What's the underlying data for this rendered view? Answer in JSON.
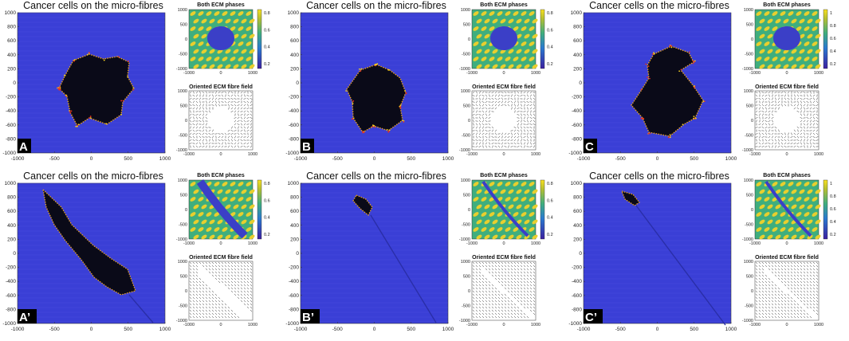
{
  "panels": [
    {
      "letter": "A",
      "big_title": "Cancer cells on the micro-fibres",
      "ecm_title": "Both ECM phases",
      "fibre_title": "Oriented ECM fibre field",
      "colorbar_ticks": [
        "0.8",
        "0.6",
        "0.4",
        "0.2"
      ],
      "pattern": "blob",
      "fibre_mode": "random",
      "mid": "mid"
    },
    {
      "letter": "B",
      "big_title": "Cancer cells on the micro-fibres",
      "ecm_title": "Both ECM phases",
      "fibre_title": "Oriented ECM fibre field",
      "colorbar_ticks": [
        "0.8",
        "0.6",
        "0.4",
        "0.2"
      ],
      "pattern": "blob",
      "fibre_mode": "random",
      "mid": "mid"
    },
    {
      "letter": "C",
      "big_title": "Cancer cells on the micro-fibres",
      "ecm_title": "Both ECM phases",
      "fibre_title": "Oriented ECM fibre field",
      "colorbar_ticks": [
        "1",
        "0.8",
        "0.6",
        "0.4",
        "0.2"
      ],
      "pattern": "blob",
      "fibre_mode": "random",
      "mid": "mid"
    },
    {
      "letter": "A’",
      "big_title": "Cancer cells on the micro-fibres",
      "ecm_title": "Both ECM phases",
      "fibre_title": "Oriented ECM fibre field",
      "colorbar_ticks": [
        "0.8",
        "0.6",
        "0.4",
        "0.2"
      ],
      "pattern": "diag",
      "fibre_mode": "oriented",
      "mid": "mid"
    },
    {
      "letter": "B’",
      "big_title": "Cancer cells on the micro-fibres",
      "ecm_title": "Both ECM phases",
      "fibre_title": "Oriented ECM fibre field",
      "colorbar_ticks": [
        "0.8",
        "0.6",
        "0.4",
        "0.2"
      ],
      "pattern": "diag",
      "fibre_mode": "oriented",
      "mid": "mid"
    },
    {
      "letter": "C’",
      "big_title": "Cancer cells on the micro-fibres",
      "ecm_title": "Both ECM phases",
      "fibre_title": "Oriented ECM fibre field",
      "colorbar_ticks": [
        "1",
        "0.8",
        "0.6",
        "0.4",
        "0.2"
      ],
      "pattern": "diag",
      "fibre_mode": "oriented",
      "mid": "mid"
    }
  ],
  "axis_ticks_y": [
    "1000",
    "800",
    "600",
    "400",
    "200",
    "0",
    "-200",
    "-400",
    "-600",
    "-800",
    "-1000"
  ],
  "axis_ticks_x": [
    "-1000",
    "-500",
    "0",
    "500",
    "1000"
  ],
  "small_ticks_y": [
    "1000",
    "500",
    "0",
    "-500",
    "-1000"
  ],
  "small_ticks_x": [
    "-1000",
    "0",
    "1000"
  ],
  "colors": {
    "background_blue": "#3a3fd6",
    "tumour": "#0a0a18",
    "ecm_yellow": "#e8cf2e",
    "ecm_green": "#3fae7e",
    "ecm_blue": "#3b3fc7"
  }
}
